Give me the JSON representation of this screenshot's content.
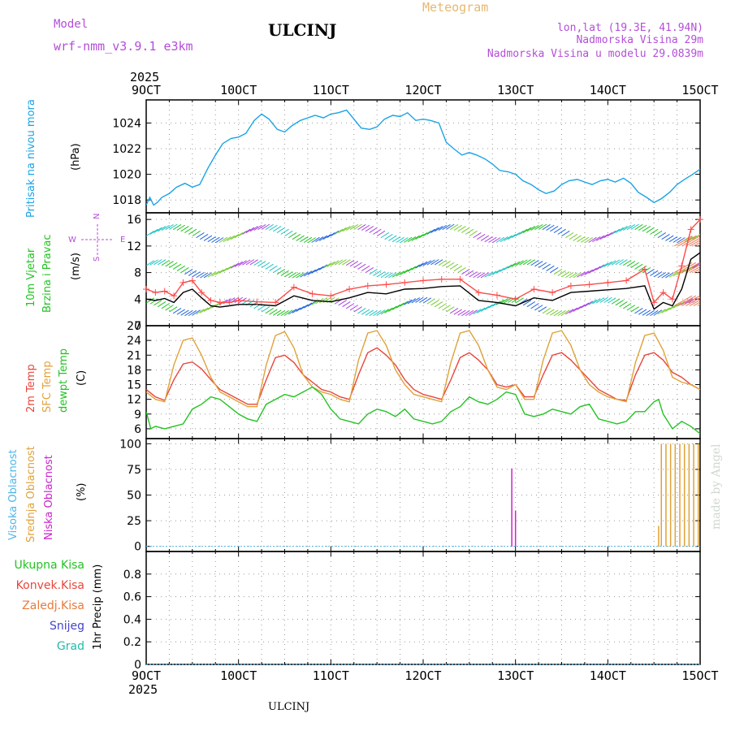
{
  "header": {
    "model_label": "Model",
    "model_name": "wrf-nmm_v3.9.1 e3km",
    "station": "ULCINJ",
    "product": "Meteogram",
    "lonlat": "lon,lat (19.3E, 41.94N)",
    "elevation": "Nadmorska Visina 29m",
    "model_elevation": "Nadmorska Visina u modelu 29.0839m",
    "footer_station": "ULCINJ",
    "credit": "made by Angel"
  },
  "colors": {
    "pressure": "#1aa3e6",
    "wind10": "#000000",
    "gust": "#ff4b4b",
    "t2m": "#e8463c",
    "sfc": "#e0a23a",
    "dew": "#22c322",
    "high_cloud": "#4fb6e6",
    "mid_cloud": "#e0a23a",
    "low_cloud": "#cc22cc",
    "model_text": "#b44ed8",
    "title_meteogram": "#e6b870"
  },
  "x_axis": {
    "top_year": "2025",
    "bottom_year": "2025",
    "ticks": [
      "9OCT",
      "10OCT",
      "11OCT",
      "12OCT",
      "13OCT",
      "14OCT",
      "15OCT"
    ],
    "range_days": [
      9,
      15
    ]
  },
  "chart_data": [
    {
      "type": "line",
      "panel": "pressure",
      "labels": [
        "Pritisak na nivou mora"
      ],
      "unit": "(hPa)",
      "ylim": [
        1017,
        1025.8
      ],
      "yticks": [
        1018,
        1020,
        1022,
        1024
      ],
      "series": [
        {
          "name": "Pritisak na nivou mora",
          "x": [
            9.0,
            9.04,
            9.08,
            9.12,
            9.17,
            9.25,
            9.33,
            9.42,
            9.5,
            9.58,
            9.67,
            9.75,
            9.83,
            9.92,
            10.0,
            10.08,
            10.17,
            10.25,
            10.33,
            10.42,
            10.5,
            10.58,
            10.67,
            10.75,
            10.83,
            10.92,
            11.0,
            11.08,
            11.17,
            11.25,
            11.33,
            11.42,
            11.5,
            11.58,
            11.67,
            11.75,
            11.83,
            11.92,
            12.0,
            12.08,
            12.17,
            12.25,
            12.33,
            12.42,
            12.5,
            12.58,
            12.67,
            12.75,
            12.83,
            12.92,
            13.0,
            13.08,
            13.17,
            13.25,
            13.33,
            13.42,
            13.5,
            13.58,
            13.67,
            13.75,
            13.83,
            13.92,
            14.0,
            14.08,
            14.17,
            14.25,
            14.33,
            14.42,
            14.5,
            14.58,
            14.67,
            14.75,
            14.83,
            14.92,
            15.0
          ],
          "y": [
            1017.6,
            1018.2,
            1017.6,
            1017.8,
            1018.2,
            1018.5,
            1019.0,
            1019.3,
            1019.0,
            1019.2,
            1020.5,
            1021.5,
            1022.4,
            1022.8,
            1022.9,
            1023.2,
            1024.2,
            1024.7,
            1024.3,
            1023.5,
            1023.3,
            1023.8,
            1024.2,
            1024.4,
            1024.6,
            1024.4,
            1024.7,
            1024.8,
            1025.0,
            1024.3,
            1023.6,
            1023.5,
            1023.7,
            1024.3,
            1024.6,
            1024.5,
            1024.8,
            1024.2,
            1024.3,
            1024.2,
            1024.0,
            1022.5,
            1022.0,
            1021.5,
            1021.7,
            1021.5,
            1021.2,
            1020.8,
            1020.3,
            1020.2,
            1020.0,
            1019.5,
            1019.2,
            1018.8,
            1018.5,
            1018.7,
            1019.2,
            1019.5,
            1019.6,
            1019.4,
            1019.2,
            1019.5,
            1019.6,
            1019.4,
            1019.7,
            1019.3,
            1018.6,
            1018.2,
            1017.8,
            1018.1,
            1018.6,
            1019.2,
            1019.6,
            1020.0,
            1020.4
          ]
        }
      ]
    },
    {
      "type": "line",
      "panel": "wind",
      "labels": [
        "10m Vjetar",
        "Brzina i Pravac"
      ],
      "unit": "(m/s)",
      "compass": [
        "N",
        "S",
        "W",
        "E"
      ],
      "ylim": [
        0,
        17
      ],
      "yticks": [
        0,
        4,
        8,
        12,
        16
      ],
      "series": [
        {
          "name": "10m Vjetar",
          "x": [
            9.0,
            9.1,
            9.2,
            9.3,
            9.4,
            9.5,
            9.6,
            9.7,
            9.8,
            9.9,
            10.0,
            10.2,
            10.4,
            10.6,
            10.8,
            11.0,
            11.2,
            11.4,
            11.6,
            11.8,
            12.0,
            12.2,
            12.4,
            12.6,
            12.8,
            13.0,
            13.2,
            13.4,
            13.6,
            13.8,
            14.0,
            14.2,
            14.4,
            14.5,
            14.6,
            14.7,
            14.8,
            14.9,
            15.0
          ],
          "y": [
            4.0,
            3.8,
            4.1,
            3.5,
            5.0,
            5.5,
            4.2,
            3.0,
            2.8,
            3.0,
            3.2,
            3.2,
            3.0,
            4.5,
            3.8,
            3.6,
            4.2,
            5.0,
            4.8,
            5.5,
            5.6,
            5.9,
            6.0,
            3.8,
            3.5,
            3.0,
            4.2,
            3.8,
            5.0,
            5.2,
            5.4,
            5.6,
            6.0,
            2.5,
            3.5,
            3.0,
            5.5,
            10.0,
            11.0
          ]
        },
        {
          "name": "Udari vjetra",
          "x": [
            9.0,
            9.1,
            9.2,
            9.3,
            9.4,
            9.5,
            9.6,
            9.7,
            9.8,
            9.9,
            10.0,
            10.2,
            10.4,
            10.6,
            10.8,
            11.0,
            11.2,
            11.4,
            11.6,
            11.8,
            12.0,
            12.2,
            12.4,
            12.6,
            12.8,
            13.0,
            13.2,
            13.4,
            13.6,
            13.8,
            14.0,
            14.2,
            14.4,
            14.5,
            14.6,
            14.7,
            14.8,
            14.9,
            15.0
          ],
          "y": [
            5.5,
            5.0,
            5.2,
            4.5,
            6.5,
            6.8,
            5.0,
            3.8,
            3.5,
            3.5,
            3.8,
            3.6,
            3.5,
            5.8,
            4.8,
            4.5,
            5.5,
            6.0,
            6.2,
            6.5,
            6.8,
            7.0,
            7.0,
            5.0,
            4.6,
            4.0,
            5.5,
            5.0,
            6.0,
            6.2,
            6.5,
            6.8,
            8.5,
            3.5,
            5.0,
            4.0,
            9.0,
            14.5,
            16.0
          ]
        }
      ]
    },
    {
      "type": "line",
      "panel": "temperature",
      "labels": [
        "2m Temp",
        "SFC Temp",
        "dewpt Temp"
      ],
      "unit": "(C)",
      "ylim": [
        4,
        27
      ],
      "yticks": [
        6,
        9,
        12,
        15,
        18,
        21,
        24,
        27
      ],
      "series": [
        {
          "name": "2m Temp",
          "x": [
            9.0,
            9.1,
            9.2,
            9.3,
            9.4,
            9.5,
            9.6,
            9.7,
            9.8,
            9.9,
            10.0,
            10.1,
            10.2,
            10.3,
            10.4,
            10.5,
            10.6,
            10.7,
            10.8,
            10.9,
            11.0,
            11.1,
            11.2,
            11.3,
            11.4,
            11.5,
            11.6,
            11.7,
            11.8,
            11.9,
            12.0,
            12.1,
            12.2,
            12.3,
            12.4,
            12.5,
            12.6,
            12.7,
            12.8,
            12.9,
            13.0,
            13.1,
            13.2,
            13.3,
            13.4,
            13.5,
            13.6,
            13.7,
            13.8,
            13.9,
            14.0,
            14.1,
            14.2,
            14.3,
            14.4,
            14.5,
            14.6,
            14.7,
            14.8,
            14.9,
            15.0
          ],
          "y": [
            14,
            12.5,
            11.8,
            16,
            19.2,
            19.6,
            18.2,
            16.0,
            14.0,
            13.0,
            12.0,
            11.0,
            11.0,
            16.0,
            20.5,
            21.0,
            19.5,
            17.0,
            15.5,
            14.0,
            13.5,
            12.5,
            12.0,
            17.0,
            21.5,
            22.5,
            21.0,
            19.0,
            16.0,
            14.0,
            13.0,
            12.5,
            12.0,
            16.0,
            20.5,
            21.5,
            20.0,
            18.0,
            15.0,
            14.5,
            15.0,
            12.5,
            12.5,
            17.0,
            21.0,
            21.5,
            20.0,
            18.0,
            16.0,
            14.0,
            13.0,
            12.0,
            11.8,
            17.0,
            21.0,
            21.5,
            20.0,
            17.5,
            16.5,
            15.0,
            14.0
          ]
        },
        {
          "name": "SFC Temp",
          "x": [
            9.0,
            9.1,
            9.2,
            9.3,
            9.4,
            9.5,
            9.6,
            9.7,
            9.8,
            9.9,
            10.0,
            10.1,
            10.2,
            10.3,
            10.4,
            10.5,
            10.6,
            10.7,
            10.8,
            10.9,
            11.0,
            11.1,
            11.2,
            11.3,
            11.4,
            11.5,
            11.6,
            11.7,
            11.8,
            11.9,
            12.0,
            12.1,
            12.2,
            12.3,
            12.4,
            12.5,
            12.6,
            12.7,
            12.8,
            12.9,
            13.0,
            13.1,
            13.2,
            13.3,
            13.4,
            13.5,
            13.6,
            13.7,
            13.8,
            13.9,
            14.0,
            14.1,
            14.2,
            14.3,
            14.4,
            14.5,
            14.6,
            14.7,
            14.8,
            14.9,
            15.0
          ],
          "y": [
            13.5,
            12.0,
            11.5,
            19,
            24.0,
            24.5,
            21.0,
            16.5,
            13.5,
            12.5,
            11.5,
            10.5,
            10.5,
            19.0,
            25.0,
            25.8,
            22.5,
            17.0,
            14.5,
            13.5,
            13.0,
            12.0,
            11.5,
            20.0,
            25.5,
            26.0,
            23.0,
            18.0,
            15.0,
            13.0,
            12.5,
            12.0,
            11.5,
            19.5,
            25.5,
            26.0,
            23.0,
            18.0,
            14.5,
            14.0,
            15.0,
            12.0,
            12.0,
            20.0,
            25.5,
            26.0,
            23.0,
            18.0,
            15.0,
            13.5,
            12.5,
            12.0,
            11.5,
            19.5,
            25.0,
            25.5,
            22.0,
            16.5,
            15.5,
            15.0,
            14.0
          ]
        },
        {
          "name": "dewpt Temp",
          "x": [
            9.0,
            9.05,
            9.1,
            9.2,
            9.3,
            9.4,
            9.5,
            9.6,
            9.7,
            9.8,
            9.9,
            10.0,
            10.1,
            10.2,
            10.3,
            10.4,
            10.5,
            10.6,
            10.7,
            10.8,
            10.9,
            11.0,
            11.1,
            11.2,
            11.3,
            11.4,
            11.5,
            11.6,
            11.7,
            11.8,
            11.9,
            12.0,
            12.1,
            12.2,
            12.3,
            12.4,
            12.5,
            12.6,
            12.7,
            12.8,
            12.9,
            13.0,
            13.1,
            13.2,
            13.3,
            13.4,
            13.5,
            13.6,
            13.7,
            13.8,
            13.9,
            14.0,
            14.1,
            14.2,
            14.3,
            14.4,
            14.5,
            14.55,
            14.6,
            14.7,
            14.8,
            14.9,
            15.0
          ],
          "y": [
            9.5,
            6.0,
            6.5,
            6.0,
            6.5,
            7.0,
            10.0,
            11.0,
            12.5,
            12.0,
            10.5,
            9.0,
            8.0,
            7.5,
            11.0,
            12.0,
            13.0,
            12.5,
            13.5,
            14.5,
            13.0,
            10.0,
            8.0,
            7.5,
            7.0,
            9.0,
            10.0,
            9.5,
            8.5,
            10.0,
            8.0,
            7.5,
            7.0,
            7.5,
            9.5,
            10.5,
            12.5,
            11.5,
            11.0,
            12.0,
            13.5,
            13.0,
            9.0,
            8.5,
            9.0,
            10.0,
            9.5,
            9.0,
            10.5,
            11.0,
            8.0,
            7.5,
            7.0,
            7.5,
            9.5,
            9.5,
            11.5,
            12.0,
            9.0,
            6.0,
            7.5,
            6.5,
            5.0
          ]
        }
      ]
    },
    {
      "type": "bar",
      "panel": "clouds",
      "labels": [
        "Visoka Oblacnost",
        "Srednja Oblacnost",
        "Niska Oblacnost"
      ],
      "unit": "(%)",
      "ylim": [
        -5,
        105
      ],
      "yticks": [
        0,
        25,
        50,
        75,
        100
      ],
      "series": [
        {
          "name": "Niska Oblacnost",
          "x": [
            12.96,
            13.0
          ],
          "values": [
            76,
            35
          ]
        },
        {
          "name": "Srednja Oblacnost",
          "x": [
            14.55,
            14.58,
            14.63,
            14.68,
            14.73,
            14.78,
            14.83,
            14.88,
            14.93,
            14.98
          ],
          "values": [
            20,
            100,
            100,
            100,
            100,
            100,
            100,
            100,
            100,
            100
          ]
        },
        {
          "name": "Visoka Oblacnost",
          "x": [],
          "values": []
        }
      ]
    },
    {
      "type": "bar",
      "panel": "precip",
      "labels": [
        "Ukupna Kisa",
        "Konvek.Kisa",
        "Zaledj.Kisa",
        "Snijeg",
        "Grad"
      ],
      "unit": "1hr Precip (mm)",
      "ylim": [
        0,
        1.0
      ],
      "yticks": [
        0,
        0.2,
        0.4,
        0.6,
        0.8
      ],
      "series": [
        {
          "name": "Ukupna Kisa",
          "x": [],
          "values": []
        },
        {
          "name": "Konvek.Kisa",
          "x": [],
          "values": []
        },
        {
          "name": "Zaledj.Kisa",
          "x": [],
          "values": []
        },
        {
          "name": "Snijeg",
          "x": [],
          "values": []
        },
        {
          "name": "Grad",
          "x": [],
          "values": []
        }
      ]
    }
  ]
}
